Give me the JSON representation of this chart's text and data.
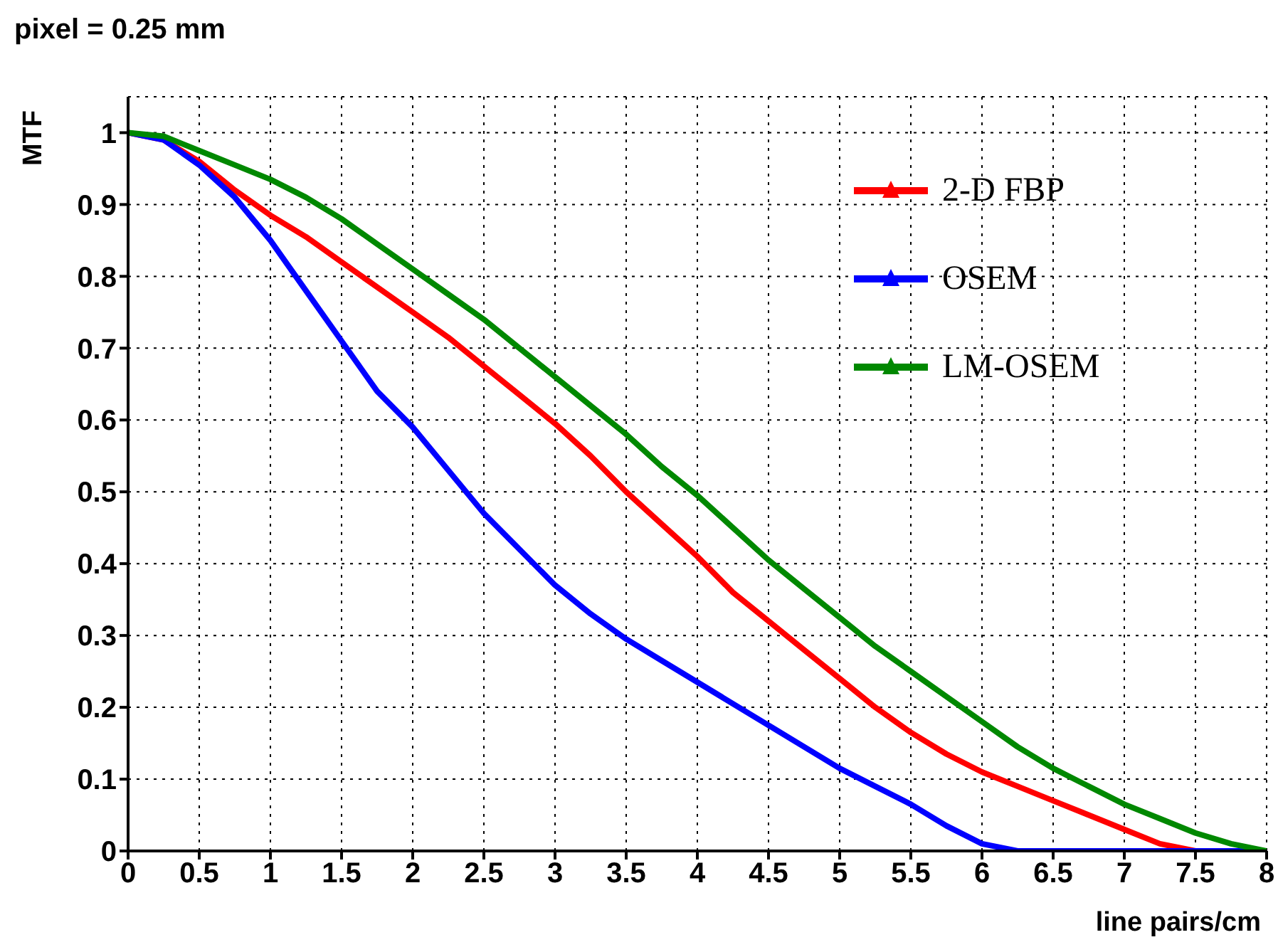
{
  "chart_data": {
    "type": "line",
    "title": "pixel = 0.25 mm",
    "xlabel": "line pairs/cm",
    "ylabel": "MTF",
    "x": [
      0,
      0.25,
      0.5,
      0.75,
      1,
      1.25,
      1.5,
      1.75,
      2,
      2.25,
      2.5,
      2.75,
      3,
      3.25,
      3.5,
      3.75,
      4,
      4.25,
      4.5,
      4.75,
      5,
      5.25,
      5.5,
      5.75,
      6,
      6.25,
      6.5,
      6.75,
      7,
      7.25,
      7.5,
      7.75,
      8
    ],
    "series": [
      {
        "name": "2-D FBP",
        "color": "#ff0000",
        "values": [
          1,
          0.99,
          0.96,
          0.92,
          0.885,
          0.855,
          0.82,
          0.785,
          0.75,
          0.715,
          0.675,
          0.635,
          0.595,
          0.55,
          0.5,
          0.455,
          0.41,
          0.36,
          0.32,
          0.28,
          0.24,
          0.2,
          0.165,
          0.135,
          0.11,
          0.09,
          0.07,
          0.05,
          0.03,
          0.01,
          0,
          0,
          0
        ]
      },
      {
        "name": "OSEM",
        "color": "#0000ff",
        "values": [
          1,
          0.99,
          0.955,
          0.91,
          0.85,
          0.78,
          0.71,
          0.64,
          0.59,
          0.53,
          0.47,
          0.42,
          0.37,
          0.33,
          0.295,
          0.265,
          0.235,
          0.205,
          0.175,
          0.145,
          0.115,
          0.09,
          0.065,
          0.035,
          0.01,
          0,
          0,
          0,
          0,
          0,
          0,
          0,
          0
        ]
      },
      {
        "name": "LM-OSEM",
        "color": "#008800",
        "values": [
          1,
          0.995,
          0.975,
          0.955,
          0.935,
          0.91,
          0.88,
          0.845,
          0.81,
          0.775,
          0.74,
          0.7,
          0.66,
          0.62,
          0.58,
          0.535,
          0.495,
          0.45,
          0.405,
          0.365,
          0.325,
          0.285,
          0.25,
          0.215,
          0.18,
          0.145,
          0.115,
          0.09,
          0.065,
          0.045,
          0.025,
          0.01,
          0
        ]
      }
    ],
    "xlim": [
      0,
      8
    ],
    "xticks": [
      0,
      0.5,
      1,
      1.5,
      2,
      2.5,
      3,
      3.5,
      4,
      4.5,
      5,
      5.5,
      6,
      6.5,
      7,
      7.5,
      8
    ],
    "ylim": [
      0,
      1.05
    ],
    "yticks": [
      0,
      0.1,
      0.2,
      0.3,
      0.4,
      0.5,
      0.6,
      0.7,
      0.8,
      0.9,
      1
    ],
    "grid": true,
    "legend": "top right",
    "marker": "none",
    "line_style": "solid"
  }
}
